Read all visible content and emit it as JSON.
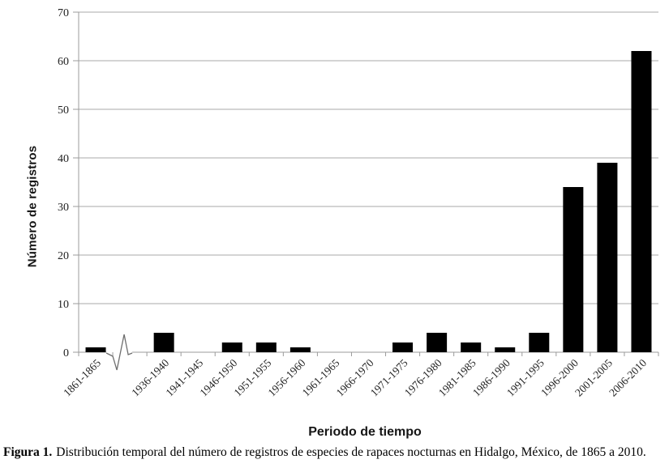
{
  "chart_data": {
    "type": "bar",
    "title": "",
    "categories": [
      "1861-1865",
      "1936-1940",
      "1941-1945",
      "1946-1950",
      "1951-1955",
      "1956-1960",
      "1961-1965",
      "1966-1970",
      "1971-1975",
      "1976-1980",
      "1981-1985",
      "1986-1990",
      "1991-1995",
      "1996-2000",
      "2001-2005",
      "2006-2010"
    ],
    "values": [
      1,
      4,
      0,
      2,
      2,
      1,
      0,
      0,
      2,
      4,
      2,
      1,
      4,
      34,
      39,
      62
    ],
    "xlabel": "Periodo de tiempo",
    "ylabel": "Número de registros",
    "ylim": [
      0,
      70
    ],
    "yticks": [
      0,
      10,
      20,
      30,
      40,
      50,
      60,
      70
    ],
    "grid": "horizontal",
    "legend_position": "none",
    "axis_break": {
      "present": true,
      "after_category": "1861-1865"
    },
    "colors": {
      "bar": "#000000",
      "grid": "#a9a9a9",
      "axis": "#9b9b9b",
      "break_mark": "#6e6e6e",
      "text": "#1f1f1f"
    }
  },
  "caption": {
    "label": "Figura 1.",
    "text": "Distribución temporal del número de registros de especies de rapaces nocturnas en Hidalgo, México, de 1865 a 2010."
  }
}
